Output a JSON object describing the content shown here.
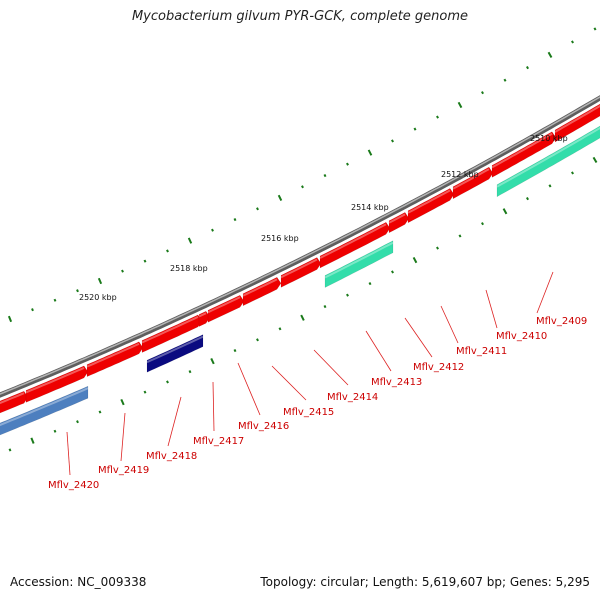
{
  "title": "Mycobacterium gilvum PYR-GCK, complete genome",
  "accession_label": "Accession: NC_009338",
  "summary_label": "Topology: circular; Length: 5,619,607 bp; Genes: 5,295",
  "colors": {
    "backbone": "#7a7a7a",
    "cds_forward": "#ee0000",
    "cds_reverse_default": "#33ddaa",
    "cds_reverse_steel": "#4d7fbf",
    "cds_reverse_navy": "#0a0a80",
    "label": "#cc0000",
    "tick": "#1a7a1a"
  },
  "scale_labels": [
    "2510 kbp",
    "2512 kbp",
    "2514 kbp",
    "2516 kbp",
    "2518 kbp",
    "2520 kbp"
  ],
  "genes": [
    "Mflv_2409",
    "Mflv_2410",
    "Mflv_2411",
    "Mflv_2412",
    "Mflv_2413",
    "Mflv_2414",
    "Mflv_2415",
    "Mflv_2416",
    "Mflv_2417",
    "Mflv_2418",
    "Mflv_2419",
    "Mflv_2420"
  ]
}
